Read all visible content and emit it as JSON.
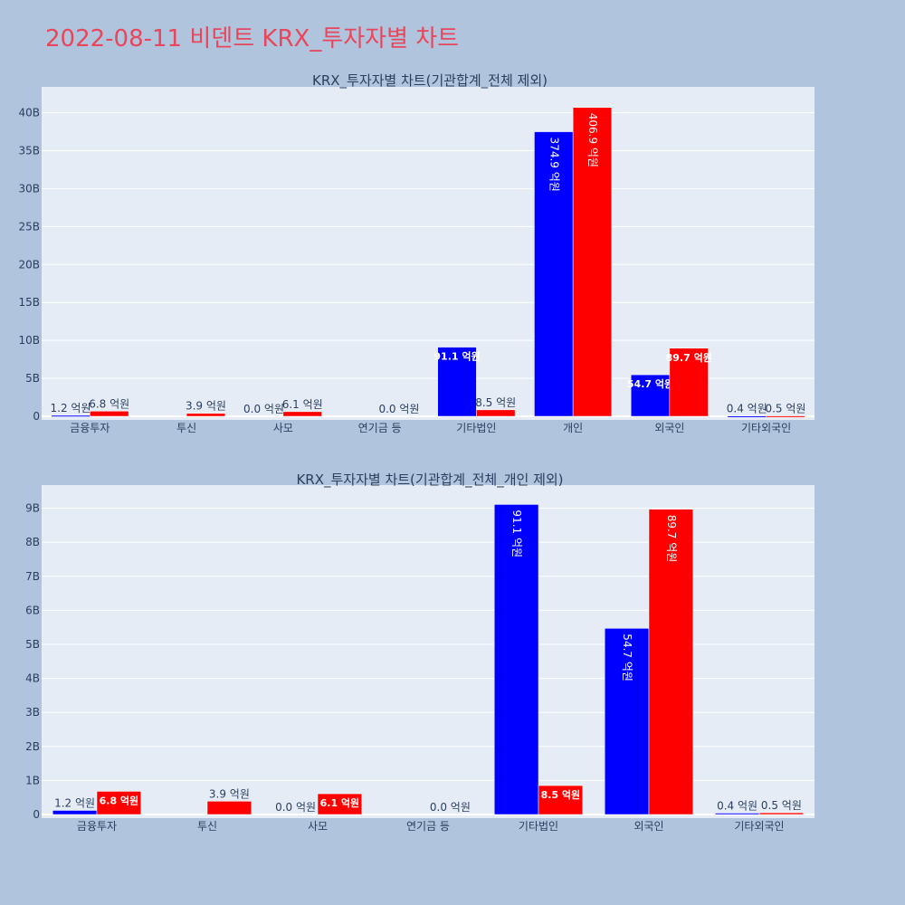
{
  "page_title": "2022-08-11 비덴트 KRX_투자자별 차트",
  "colors": {
    "background": "#b0c4de",
    "plot_bg": "#e5ecf6",
    "sell": "#0000ff",
    "buy": "#ff0000",
    "title": "#e8465a"
  },
  "chart_data": [
    {
      "type": "bar",
      "title": "KRX_투자자별 차트(기관합계_전체 제외)",
      "categories": [
        "금융투자",
        "투신",
        "사모",
        "연기금 등",
        "기타법인",
        "개인",
        "외국인",
        "기타외국인"
      ],
      "series": [
        {
          "color": "#0000ff",
          "values": [
            0.12,
            0,
            0.0,
            0,
            9.11,
            37.49,
            5.47,
            0.04
          ],
          "labels": [
            "1.2 억원",
            "",
            "0.0 억원",
            "",
            "91.1 억원",
            "374.9 억원",
            "54.7 억원",
            "0.4 억원"
          ]
        },
        {
          "color": "#ff0000",
          "values": [
            0.68,
            0.39,
            0.61,
            0.0,
            0.85,
            40.69,
            8.97,
            0.05
          ],
          "labels": [
            "6.8 억원",
            "3.9 억원",
            "6.1 억원",
            "0.0 억원",
            "8.5 억원",
            "406.9 억원",
            "89.7 억원",
            "0.5 억원"
          ]
        }
      ],
      "yticks": [
        0,
        5,
        10,
        15,
        20,
        25,
        30,
        35,
        40
      ],
      "ytick_labels": [
        "0",
        "5B",
        "10B",
        "15B",
        "20B",
        "25B",
        "30B",
        "35B",
        "40B"
      ],
      "ylim": [
        0,
        43.4
      ],
      "grid": true,
      "legend": "none"
    },
    {
      "type": "bar",
      "title": "KRX_투자자별 차트(기관합계_전체_개인 제외)",
      "categories": [
        "금융투자",
        "투신",
        "사모",
        "연기금 등",
        "기타법인",
        "외국인",
        "기타외국인"
      ],
      "series": [
        {
          "color": "#0000ff",
          "values": [
            0.12,
            0,
            0.0,
            0,
            9.11,
            5.47,
            0.04
          ],
          "labels": [
            "1.2 억원",
            "",
            "0.0 억원",
            "",
            "91.1 억원",
            "54.7 억원",
            "0.4 억원"
          ]
        },
        {
          "color": "#ff0000",
          "values": [
            0.68,
            0.39,
            0.61,
            0.0,
            0.85,
            8.97,
            0.05
          ],
          "labels": [
            "6.8 억원",
            "3.9 억원",
            "6.1 억원",
            "0.0 억원",
            "8.5 억원",
            "89.7 억원",
            "0.5 억원"
          ]
        }
      ],
      "yticks": [
        0,
        1,
        2,
        3,
        4,
        5,
        6,
        7,
        8,
        9
      ],
      "ytick_labels": [
        "0",
        "1B",
        "2B",
        "3B",
        "4B",
        "5B",
        "6B",
        "7B",
        "8B",
        "9B"
      ],
      "ylim": [
        0,
        9.68
      ],
      "grid": true,
      "legend": "none"
    }
  ]
}
